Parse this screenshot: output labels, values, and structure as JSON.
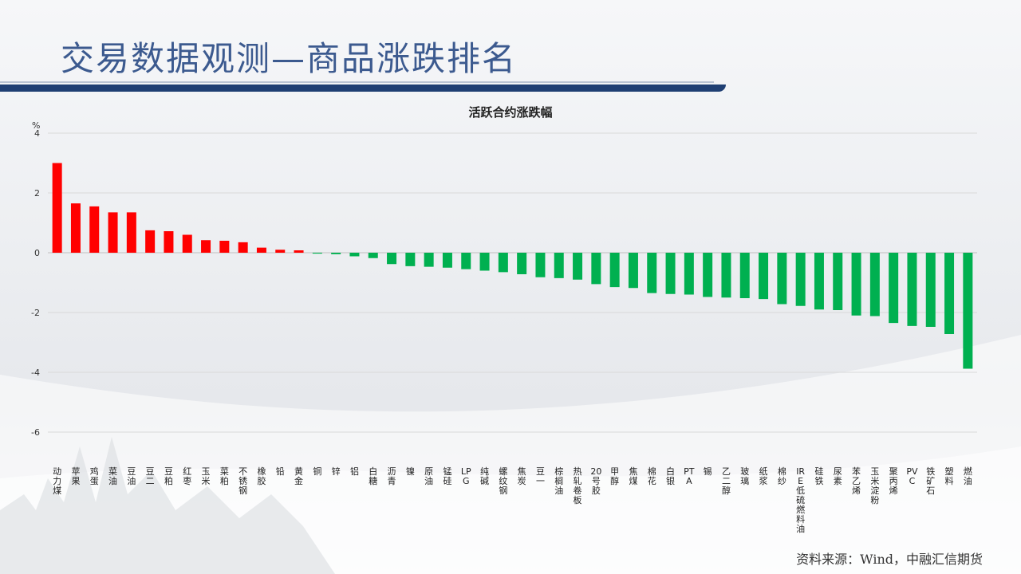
{
  "header": {
    "title": "交易数据观测—商品涨跌排名"
  },
  "footer": {
    "source": "资料来源：Wind，中融汇信期货"
  },
  "colors": {
    "positive": "#ff0000",
    "negative": "#00b050",
    "title_blue": "#3c5a8f",
    "rule_navy": "#1f3f73"
  },
  "chart_data": {
    "type": "bar",
    "title": "活跃合约涨跌幅",
    "ylabel": "%",
    "ylim": [
      -6,
      4
    ],
    "yticks": [
      4,
      2,
      0,
      -2,
      -4,
      -6
    ],
    "grid": true,
    "categories": [
      "动力煤",
      "苹果",
      "鸡蛋",
      "菜油",
      "豆油",
      "豆二",
      "豆粕",
      "红枣",
      "玉米",
      "菜粕",
      "不锈钢",
      "橡胶",
      "铅",
      "黄金",
      "铜",
      "锌",
      "铝",
      "白糖",
      "沥青",
      "镍",
      "原油",
      "锰硅",
      "LPG",
      "纯碱",
      "螺纹钢",
      "焦炭",
      "豆一",
      "棕榈油",
      "热轧卷板",
      "20号胶",
      "甲醇",
      "焦煤",
      "棉花",
      "白银",
      "PTA",
      "锡",
      "乙二醇",
      "玻璃",
      "纸浆",
      "棉纱",
      "IRE低硫燃料油",
      "硅铁",
      "尿素",
      "苯乙烯",
      "玉米淀粉",
      "聚丙烯",
      "PVC",
      "铁矿石",
      "塑料",
      "燃油"
    ],
    "values": [
      3.0,
      1.65,
      1.55,
      1.35,
      1.35,
      0.75,
      0.72,
      0.6,
      0.42,
      0.4,
      0.35,
      0.17,
      0.1,
      0.08,
      -0.03,
      -0.05,
      -0.12,
      -0.18,
      -0.38,
      -0.45,
      -0.47,
      -0.5,
      -0.55,
      -0.6,
      -0.65,
      -0.72,
      -0.82,
      -0.85,
      -0.9,
      -1.05,
      -1.15,
      -1.18,
      -1.35,
      -1.38,
      -1.4,
      -1.48,
      -1.5,
      -1.52,
      -1.55,
      -1.72,
      -1.78,
      -1.9,
      -1.92,
      -2.1,
      -2.12,
      -2.35,
      -2.45,
      -2.48,
      -2.72,
      -3.88
    ]
  }
}
